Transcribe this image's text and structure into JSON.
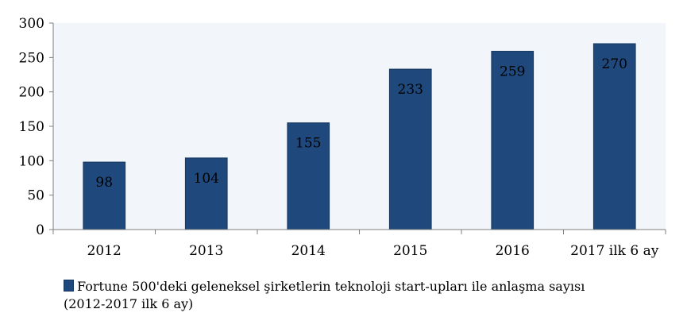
{
  "chart_data": {
    "type": "bar",
    "categories": [
      "2012",
      "2013",
      "2014",
      "2015",
      "2016",
      "2017 ilk 6 ay"
    ],
    "values": [
      98,
      104,
      155,
      233,
      259,
      270
    ],
    "data_labels": [
      "98",
      "104",
      "155",
      "233",
      "259",
      "270"
    ],
    "y_ticks": [
      "0",
      "50",
      "100",
      "150",
      "200",
      "250",
      "300"
    ],
    "ylim": [
      0,
      300
    ],
    "grid": false,
    "legend_position": "bottom",
    "series": [
      {
        "name_line1": "Fortune 500'deki geleneksel şirketlerin teknoloji start-upları ile anlaşma sayısı",
        "name_line2": "(2012-2017 ilk 6 ay)",
        "color": "#1f497d"
      }
    ],
    "plot_background": "#f2f5fa"
  }
}
